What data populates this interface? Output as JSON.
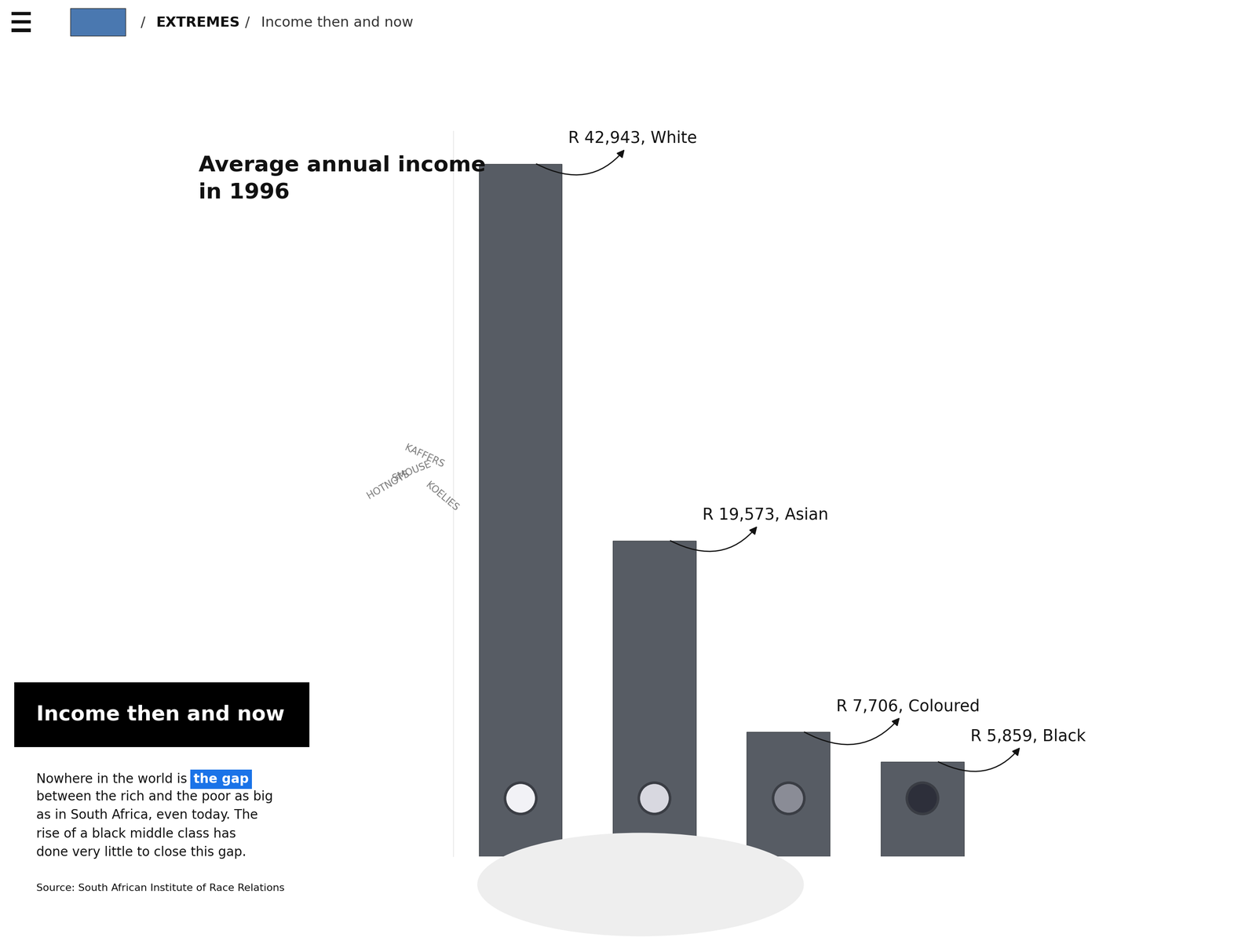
{
  "chart_data": {
    "type": "bar",
    "title": "Average annual income in 1996",
    "categories": [
      "White",
      "Asian",
      "Coloured",
      "Black"
    ],
    "values": [
      42943,
      19573,
      7706,
      5859
    ],
    "value_labels": [
      "R 42,943, White",
      "R 19,573, Asian",
      "R 7,706, Coloured",
      "R 5,859, Black"
    ],
    "color": "#575c64",
    "ylim": [
      0,
      45000
    ],
    "yticks": [],
    "tick_labels": false,
    "data_labels": true,
    "grid": false
  },
  "header": {
    "separator": "/",
    "breadcrumb": [
      "EXTREMES",
      "Income then and now"
    ]
  },
  "panel": {
    "heading": "Income then and now",
    "body_before": "Nowhere in the world is",
    "body_link": "the gap",
    "body_after": "between the rich and the poor as big as in South Africa, even today. The rise of a black middle class has done very little to close this gap.",
    "source": "Source: South African Institute of Race Relations"
  },
  "signs": [
    "KAFFERS",
    "SMOUSE",
    "HOTNOTS",
    "KOELIES"
  ]
}
